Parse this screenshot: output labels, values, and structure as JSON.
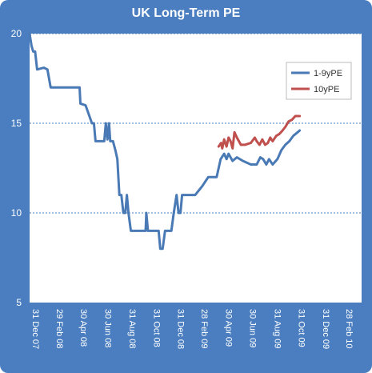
{
  "chart_data": {
    "type": "line",
    "title": "UK Long-Term PE",
    "xlabel": "",
    "ylabel": "",
    "ylim": [
      5,
      20
    ],
    "yticks": [
      5,
      10,
      15,
      20
    ],
    "xlim": [
      "2007-12-31",
      "2010-04-15"
    ],
    "xticks": [
      {
        "date": "2007-12-31",
        "label": "31 Dec 07"
      },
      {
        "date": "2008-02-29",
        "label": "29 Feb 08"
      },
      {
        "date": "2008-04-30",
        "label": "30 Apr 08"
      },
      {
        "date": "2008-06-30",
        "label": "30 Jun 08"
      },
      {
        "date": "2008-08-31",
        "label": "31 Aug 08"
      },
      {
        "date": "2008-10-31",
        "label": "31 Oct 08"
      },
      {
        "date": "2008-12-31",
        "label": "31 Dec 08"
      },
      {
        "date": "2009-02-28",
        "label": "28 Feb 09"
      },
      {
        "date": "2009-04-30",
        "label": "30 Apr 09"
      },
      {
        "date": "2009-06-30",
        "label": "30 Jun 09"
      },
      {
        "date": "2009-08-31",
        "label": "31 Aug 09"
      },
      {
        "date": "2009-10-31",
        "label": "31 Oct 09"
      },
      {
        "date": "2009-12-31",
        "label": "31 Dec 09"
      },
      {
        "date": "2010-02-28",
        "label": "28 Feb 10"
      }
    ],
    "grid": "horizontal-dashed",
    "legend": "top-right",
    "series": [
      {
        "name": "1-9yPE",
        "color": "#4a7ab5",
        "points": [
          [
            "2007-12-31",
            20.0
          ],
          [
            "2008-01-05",
            19.3
          ],
          [
            "2008-01-09",
            19.0
          ],
          [
            "2008-01-14",
            19.0
          ],
          [
            "2008-01-19",
            18.0
          ],
          [
            "2008-02-05",
            18.1
          ],
          [
            "2008-02-14",
            18.0
          ],
          [
            "2008-02-22",
            17.0
          ],
          [
            "2008-03-10",
            17.0
          ],
          [
            "2008-04-10",
            17.0
          ],
          [
            "2008-05-05",
            17.0
          ],
          [
            "2008-05-07",
            16.1
          ],
          [
            "2008-05-20",
            16.0
          ],
          [
            "2008-06-05",
            15.0
          ],
          [
            "2008-06-10",
            15.0
          ],
          [
            "2008-06-14",
            14.0
          ],
          [
            "2008-06-30",
            14.0
          ],
          [
            "2008-07-06",
            14.0
          ],
          [
            "2008-07-10",
            15.0
          ],
          [
            "2008-07-14",
            14.1
          ],
          [
            "2008-07-18",
            15.0
          ],
          [
            "2008-07-21",
            14.0
          ],
          [
            "2008-07-28",
            14.0
          ],
          [
            "2008-08-03",
            13.5
          ],
          [
            "2008-08-08",
            13.0
          ],
          [
            "2008-08-13",
            11.0
          ],
          [
            "2008-08-18",
            11.0
          ],
          [
            "2008-08-23",
            10.0
          ],
          [
            "2008-08-28",
            10.0
          ],
          [
            "2008-09-01",
            11.0
          ],
          [
            "2008-09-05",
            10.0
          ],
          [
            "2008-09-11",
            9.0
          ],
          [
            "2008-10-04",
            9.0
          ],
          [
            "2008-10-11",
            9.0
          ],
          [
            "2008-10-18",
            9.0
          ],
          [
            "2008-10-20",
            10.0
          ],
          [
            "2008-10-24",
            9.0
          ],
          [
            "2008-11-10",
            9.0
          ],
          [
            "2008-11-20",
            9.0
          ],
          [
            "2008-11-24",
            8.0
          ],
          [
            "2008-11-30",
            8.0
          ],
          [
            "2008-12-06",
            9.0
          ],
          [
            "2008-12-14",
            9.0
          ],
          [
            "2008-12-22",
            9.0
          ],
          [
            "2008-12-28",
            10.0
          ],
          [
            "2009-01-04",
            11.0
          ],
          [
            "2009-01-09",
            10.0
          ],
          [
            "2009-01-14",
            10.0
          ],
          [
            "2009-01-18",
            11.0
          ],
          [
            "2009-02-05",
            11.0
          ],
          [
            "2009-02-20",
            11.0
          ],
          [
            "2009-03-10",
            11.5
          ],
          [
            "2009-03-25",
            12.0
          ],
          [
            "2009-04-10",
            12.0
          ],
          [
            "2009-04-15",
            12.0
          ],
          [
            "2009-04-25",
            13.0
          ],
          [
            "2009-05-04",
            13.3
          ],
          [
            "2009-05-10",
            13.0
          ],
          [
            "2009-05-15",
            13.3
          ],
          [
            "2009-05-25",
            12.9
          ],
          [
            "2009-06-05",
            13.1
          ],
          [
            "2009-06-20",
            12.9
          ],
          [
            "2009-07-10",
            12.7
          ],
          [
            "2009-07-25",
            12.7
          ],
          [
            "2009-08-03",
            13.1
          ],
          [
            "2009-08-10",
            13.0
          ],
          [
            "2009-08-18",
            12.7
          ],
          [
            "2009-08-25",
            13.0
          ],
          [
            "2009-09-03",
            12.7
          ],
          [
            "2009-09-15",
            13.0
          ],
          [
            "2009-09-25",
            13.5
          ],
          [
            "2009-10-05",
            13.8
          ],
          [
            "2009-10-15",
            14.0
          ],
          [
            "2009-10-25",
            14.3
          ],
          [
            "2009-11-05",
            14.5
          ],
          [
            "2009-11-10",
            14.6
          ]
        ]
      },
      {
        "name": "10yPE",
        "color": "#c0504d",
        "points": [
          [
            "2009-04-20",
            13.7
          ],
          [
            "2009-04-26",
            13.9
          ],
          [
            "2009-04-29",
            13.6
          ],
          [
            "2009-05-04",
            14.1
          ],
          [
            "2009-05-10",
            13.7
          ],
          [
            "2009-05-15",
            14.2
          ],
          [
            "2009-05-20",
            14.0
          ],
          [
            "2009-05-25",
            13.6
          ],
          [
            "2009-05-30",
            14.5
          ],
          [
            "2009-06-05",
            14.2
          ],
          [
            "2009-06-15",
            13.8
          ],
          [
            "2009-06-25",
            13.8
          ],
          [
            "2009-07-10",
            13.9
          ],
          [
            "2009-07-20",
            14.2
          ],
          [
            "2009-07-25",
            14.0
          ],
          [
            "2009-08-01",
            13.8
          ],
          [
            "2009-08-08",
            14.1
          ],
          [
            "2009-08-15",
            13.8
          ],
          [
            "2009-08-22",
            13.9
          ],
          [
            "2009-08-28",
            14.2
          ],
          [
            "2009-09-03",
            14.0
          ],
          [
            "2009-09-12",
            14.3
          ],
          [
            "2009-09-20",
            14.4
          ],
          [
            "2009-09-28",
            14.6
          ],
          [
            "2009-10-05",
            14.8
          ],
          [
            "2009-10-13",
            15.1
          ],
          [
            "2009-10-22",
            15.2
          ],
          [
            "2009-10-30",
            15.4
          ],
          [
            "2009-11-06",
            15.4
          ],
          [
            "2009-11-10",
            15.4
          ]
        ]
      }
    ]
  }
}
